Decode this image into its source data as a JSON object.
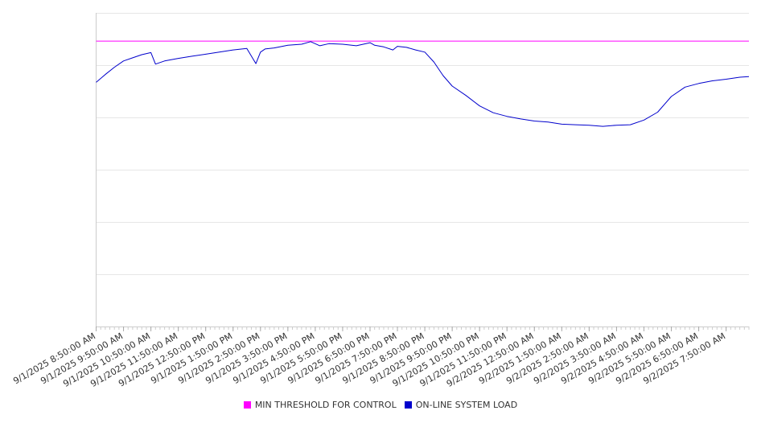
{
  "chart_data": {
    "type": "line",
    "title": "",
    "xlabel": "",
    "ylabel": "",
    "grid": true,
    "legend_position": "bottom",
    "x_tick_labels": [
      "9/1/2025 8:50:00 AM",
      "9/1/2025 9:50:00 AM",
      "9/1/2025 10:50:00 AM",
      "9/1/2025 11:50:00 AM",
      "9/1/2025 12:50:00 PM",
      "9/1/2025 1:50:00 PM",
      "9/1/2025 2:50:00 PM",
      "9/1/2025 3:50:00 PM",
      "9/1/2025 4:50:00 PM",
      "9/1/2025 5:50:00 PM",
      "9/1/2025 6:50:00 PM",
      "9/1/2025 7:50:00 PM",
      "9/1/2025 8:50:00 PM",
      "9/1/2025 9:50:00 PM",
      "9/1/2025 10:50:00 PM",
      "9/1/2025 11:50:00 PM",
      "9/2/2025 12:50:00 AM",
      "9/2/2025 1:50:00 AM",
      "9/2/2025 2:50:00 AM",
      "9/2/2025 3:50:00 AM",
      "9/2/2025 4:50:00 AM",
      "9/2/2025 5:50:00 AM",
      "9/2/2025 6:50:00 AM",
      "9/2/2025 7:50:00 AM"
    ],
    "x_range": [
      "9/1/2025 8:50:00 AM",
      "9/2/2025 8:40:00 AM"
    ],
    "ylim": [
      0,
      6
    ],
    "y_gridlines": [
      0,
      1,
      2,
      3,
      4,
      5,
      6
    ],
    "series": [
      {
        "name": "MIN THRESHOLD FOR CONTROL",
        "color": "#ff00ff",
        "x": [
          "9/1/2025 8:50:00 AM",
          "9/2/2025 8:40:00 AM"
        ],
        "y": [
          5.46,
          5.46
        ]
      },
      {
        "name": "ON-LINE SYSTEM LOAD",
        "color": "#0000cc",
        "x": [
          "9/1/2025 8:50:00 AM",
          "9/1/2025 9:10:00 AM",
          "9/1/2025 9:30:00 AM",
          "9/1/2025 9:50:00 AM",
          "9/1/2025 10:10:00 AM",
          "9/1/2025 10:30:00 AM",
          "9/1/2025 10:50:00 AM",
          "9/1/2025 11:00:00 AM",
          "9/1/2025 11:20:00 AM",
          "9/1/2025 11:50:00 AM",
          "9/1/2025 12:20:00 PM",
          "9/1/2025 12:50:00 PM",
          "9/1/2025 1:20:00 PM",
          "9/1/2025 1:50:00 PM",
          "9/1/2025 2:20:00 PM",
          "9/1/2025 2:40:00 PM",
          "9/1/2025 2:50:00 PM",
          "9/1/2025 3:00:00 PM",
          "9/1/2025 3:20:00 PM",
          "9/1/2025 3:50:00 PM",
          "9/1/2025 4:20:00 PM",
          "9/1/2025 4:40:00 PM",
          "9/1/2025 5:00:00 PM",
          "9/1/2025 5:20:00 PM",
          "9/1/2025 5:50:00 PM",
          "9/1/2025 6:20:00 PM",
          "9/1/2025 6:50:00 PM",
          "9/1/2025 7:00:00 PM",
          "9/1/2025 7:20:00 PM",
          "9/1/2025 7:40:00 PM",
          "9/1/2025 7:50:00 PM",
          "9/1/2025 8:10:00 PM",
          "9/1/2025 8:30:00 PM",
          "9/1/2025 8:50:00 PM",
          "9/1/2025 9:10:00 PM",
          "9/1/2025 9:30:00 PM",
          "9/1/2025 9:50:00 PM",
          "9/1/2025 10:20:00 PM",
          "9/1/2025 10:50:00 PM",
          "9/1/2025 11:20:00 PM",
          "9/1/2025 11:50:00 PM",
          "9/2/2025 12:20:00 AM",
          "9/2/2025 12:50:00 AM",
          "9/2/2025 1:20:00 AM",
          "9/2/2025 1:50:00 AM",
          "9/2/2025 2:20:00 AM",
          "9/2/2025 2:50:00 AM",
          "9/2/2025 3:20:00 AM",
          "9/2/2025 3:50:00 AM",
          "9/2/2025 4:20:00 AM",
          "9/2/2025 4:50:00 AM",
          "9/2/2025 5:20:00 AM",
          "9/2/2025 5:50:00 AM",
          "9/2/2025 6:20:00 AM",
          "9/2/2025 6:50:00 AM",
          "9/2/2025 7:20:00 AM",
          "9/2/2025 7:50:00 AM",
          "9/2/2025 8:20:00 AM",
          "9/2/2025 8:40:00 AM"
        ],
        "y": [
          4.67,
          4.82,
          4.96,
          5.08,
          5.14,
          5.2,
          5.24,
          5.02,
          5.08,
          5.13,
          5.17,
          5.21,
          5.25,
          5.29,
          5.32,
          5.03,
          5.25,
          5.31,
          5.33,
          5.38,
          5.4,
          5.45,
          5.37,
          5.41,
          5.4,
          5.37,
          5.43,
          5.38,
          5.35,
          5.29,
          5.36,
          5.34,
          5.29,
          5.25,
          5.06,
          4.8,
          4.6,
          4.42,
          4.22,
          4.09,
          4.02,
          3.97,
          3.93,
          3.91,
          3.87,
          3.86,
          3.85,
          3.83,
          3.85,
          3.86,
          3.95,
          4.1,
          4.4,
          4.58,
          4.65,
          4.7,
          4.73,
          4.77,
          4.78
        ]
      }
    ]
  }
}
